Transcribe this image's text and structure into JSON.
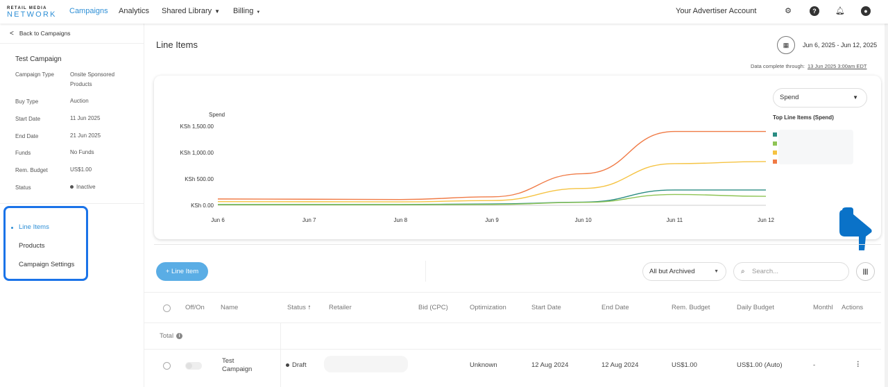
{
  "brand": {
    "line1": "RETAIL MEDIA",
    "line2": "NETWORK"
  },
  "topnav": {
    "campaigns": "Campaigns",
    "analytics": "Analytics",
    "shared_library": "Shared Library",
    "billing": "Billing",
    "account": "Your Advertiser Account",
    "icons": [
      "gear-icon",
      "help-icon",
      "bell-icon",
      "user-icon"
    ],
    "accent": "#2e8fd6"
  },
  "sidebar": {
    "back": "Back to Campaigns",
    "campaign_name": "Test Campaign",
    "details": [
      {
        "label": "Campaign Type",
        "value": "Onsite Sponsored Products"
      },
      {
        "label": "Buy Type",
        "value": "Auction"
      },
      {
        "label": "Start Date",
        "value": "11 Jun 2025"
      },
      {
        "label": "End Date",
        "value": "21 Jun 2025"
      },
      {
        "label": "Funds",
        "value": "No Funds"
      },
      {
        "label": "Rem. Budget",
        "value": "US$1.00"
      },
      {
        "label": "Status",
        "value": "Inactive"
      }
    ],
    "nav": [
      {
        "label": "Line Items",
        "active": true
      },
      {
        "label": "Products",
        "active": false
      },
      {
        "label": "Campaign Settings",
        "active": false
      }
    ]
  },
  "main": {
    "title": "Line Items",
    "date_range": "Jun 6, 2025 - Jun 12, 2025",
    "data_complete_label": "Data complete through:",
    "data_complete_value": "13 Jun 2025 3:00am EDT"
  },
  "chart_data": {
    "type": "line",
    "ylabel": "Spend",
    "xlabel": "",
    "categories": [
      "Jun 6",
      "Jun 7",
      "Jun 8",
      "Jun 9",
      "Jun 10",
      "Jun 11",
      "Jun 12"
    ],
    "y_ticks": [
      "KSh 0.00",
      "KSh 500.00",
      "KSh 1,000.00",
      "KSh 1,500.00"
    ],
    "ylim": [
      0,
      1500
    ],
    "metric_select": "Spend",
    "legend_title": "Top Line Items (Spend)",
    "legend_placement": "right",
    "grid": false,
    "series": [
      {
        "color": "#f07a45",
        "points": [
          [
            0,
            120
          ],
          [
            2,
            110
          ],
          [
            3,
            160
          ],
          [
            4,
            600
          ],
          [
            5,
            1400
          ],
          [
            6,
            1400
          ]
        ]
      },
      {
        "color": "#f5c342",
        "points": [
          [
            0,
            70
          ],
          [
            2,
            65
          ],
          [
            3,
            90
          ],
          [
            4,
            320
          ],
          [
            5,
            790
          ],
          [
            6,
            830
          ]
        ]
      },
      {
        "color": "#2a8c82",
        "points": [
          [
            0,
            15
          ],
          [
            2,
            15
          ],
          [
            3,
            25
          ],
          [
            4,
            60
          ],
          [
            5,
            290
          ],
          [
            6,
            290
          ]
        ]
      },
      {
        "color": "#8fc455",
        "points": [
          [
            0,
            10
          ],
          [
            2,
            10
          ],
          [
            3,
            15
          ],
          [
            4,
            55
          ],
          [
            5,
            205
          ],
          [
            6,
            170
          ]
        ]
      }
    ],
    "legend_colors": [
      "#2a8c82",
      "#8fc455",
      "#f5c342",
      "#f07a45"
    ]
  },
  "toolbar": {
    "add_label": "+ Line Item",
    "filter_value": "All but Archived",
    "search_placeholder": "Search..."
  },
  "table": {
    "headers": [
      "Off/On",
      "Name",
      "Status",
      "Retailer",
      "Bid (CPC)",
      "Optimization",
      "Start Date",
      "End Date",
      "Rem. Budget",
      "Daily Budget",
      "Monthl",
      "Actions"
    ],
    "status_sort": "↑",
    "total_label": "Total",
    "rows": [
      {
        "name_l1": "Test",
        "name_l2": "Campaign",
        "status": "Draft",
        "optimization": "Unknown",
        "start_date": "12 Aug 2024",
        "end_date": "12 Aug 2024",
        "rem_budget": "US$1.00",
        "daily_budget": "US$1.00 (Auto)",
        "monthly": "-",
        "actions": "⋮"
      }
    ]
  }
}
